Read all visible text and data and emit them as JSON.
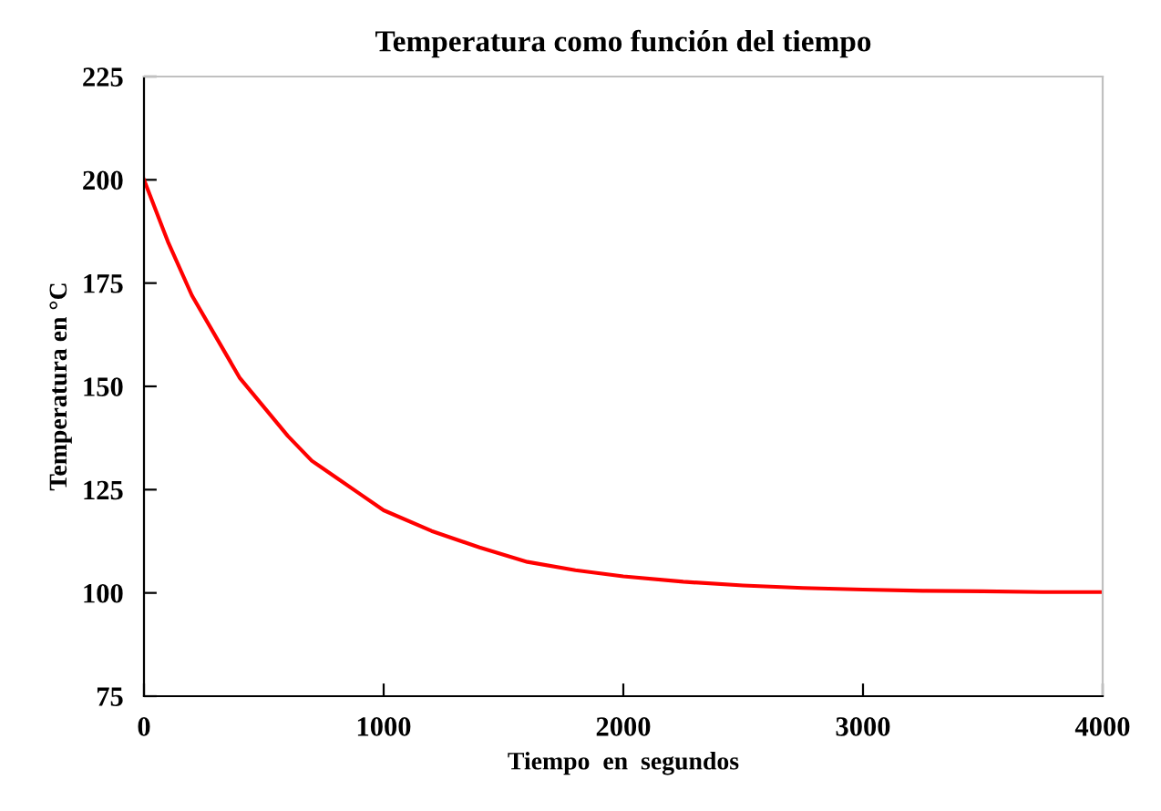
{
  "chart_data": {
    "type": "line",
    "title": "Temperatura como función del tiempo",
    "xlabel": "Tiempo  en  segundos",
    "ylabel": "Temperatura en °C",
    "x": [
      0,
      100,
      200,
      300,
      400,
      500,
      600,
      700,
      800,
      900,
      1000,
      1200,
      1400,
      1600,
      1800,
      2000,
      2250,
      2500,
      2750,
      3000,
      3250,
      3500,
      3750,
      4000
    ],
    "series": [
      {
        "color": "#ff0000",
        "values": [
          200,
          185,
          172,
          162,
          152,
          145,
          138,
          132,
          128,
          124,
          120,
          115,
          111,
          107.5,
          105.5,
          104,
          102.7,
          101.8,
          101.2,
          100.8,
          100.5,
          100.4,
          100.2,
          100.2
        ]
      }
    ],
    "xlim": [
      0,
      4000
    ],
    "xticks": [
      0,
      1000,
      2000,
      3000,
      4000
    ],
    "ylim": [
      75,
      225
    ],
    "yticks": [
      75,
      100,
      125,
      150,
      175,
      200,
      225
    ],
    "grid": false,
    "legend": false,
    "marker": "none",
    "line_style": "solid"
  }
}
